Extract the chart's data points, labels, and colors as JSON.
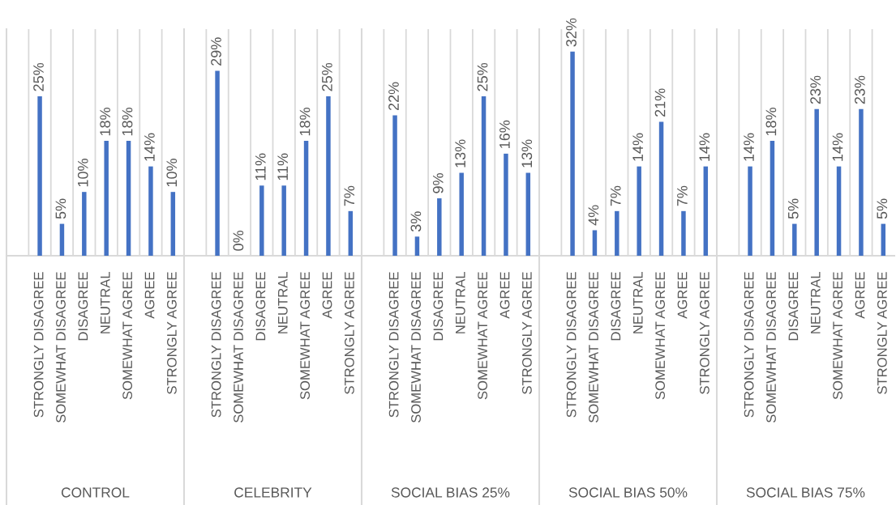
{
  "chart_data": [
    {
      "type": "bar",
      "xlabel": "CONTROL",
      "categories": [
        null,
        "STRONGLY DISAGREE",
        "SOMEWHAT DISAGREE",
        "DISAGREE",
        "NEUTRAL",
        "SOMEWHAT AGREE",
        "AGREE",
        "STRONGLY AGREE"
      ],
      "values": [
        null,
        25,
        5,
        10,
        18,
        18,
        14,
        10
      ],
      "value_labels": [
        null,
        "25%",
        "5%",
        "10%",
        "18%",
        "18%",
        "14%",
        "10%"
      ],
      "color": "#4472c4",
      "grid": "x",
      "tick_labels": "x"
    },
    {
      "type": "bar",
      "xlabel": "CELEBRITY",
      "categories": [
        null,
        "STRONGLY DISAGREE",
        "SOMEWHAT DISAGREE",
        "DISAGREE",
        "NEUTRAL",
        "SOMEWHAT AGREE",
        "AGREE",
        "STRONGLY AGREE"
      ],
      "values": [
        null,
        29,
        0,
        11,
        11,
        18,
        25,
        7
      ],
      "value_labels": [
        null,
        "29%",
        "0%",
        "11%",
        "11%",
        "18%",
        "25%",
        "7%"
      ],
      "color": "#4472c4",
      "grid": "x",
      "tick_labels": "x"
    },
    {
      "type": "bar",
      "xlabel": "SOCIAL BIAS 25%",
      "categories": [
        null,
        "STRONGLY DISAGREE",
        "SOMEWHAT DISAGREE",
        "DISAGREE",
        "NEUTRAL",
        "SOMEWHAT AGREE",
        "AGREE",
        "STRONGLY AGREE"
      ],
      "values": [
        null,
        22,
        3,
        9,
        13,
        25,
        16,
        13
      ],
      "value_labels": [
        null,
        "22%",
        "3%",
        "9%",
        "13%",
        "25%",
        "16%",
        "13%"
      ],
      "color": "#4472c4",
      "grid": "x",
      "tick_labels": "x"
    },
    {
      "type": "bar",
      "xlabel": "SOCIAL BIAS 50%",
      "categories": [
        null,
        "STRONGLY DISAGREE",
        "SOMEWHAT DISAGREE",
        "DISAGREE",
        "NEUTRAL",
        "SOMEWHAT AGREE",
        "AGREE",
        "STRONGLY AGREE"
      ],
      "values": [
        null,
        32,
        4,
        7,
        14,
        21,
        7,
        14
      ],
      "value_labels": [
        null,
        "32%",
        "4%",
        "7%",
        "14%",
        "21%",
        "7%",
        "14%"
      ],
      "color": "#4472c4",
      "grid": "x",
      "tick_labels": "x"
    },
    {
      "type": "bar",
      "xlabel": "SOCIAL BIAS 75%",
      "categories": [
        null,
        "STRONGLY DISAGREE",
        "SOMEWHAT DISAGREE",
        "DISAGREE",
        "NEUTRAL",
        "SOMEWHAT AGREE",
        "AGREE",
        "STRONGLY AGREE"
      ],
      "values": [
        null,
        14,
        18,
        5,
        23,
        14,
        23,
        5
      ],
      "value_labels": [
        null,
        "14%",
        "18%",
        "5%",
        "23%",
        "14%",
        "23%",
        "5%"
      ],
      "color": "#4472c4",
      "grid": "x",
      "tick_labels": "x"
    }
  ]
}
